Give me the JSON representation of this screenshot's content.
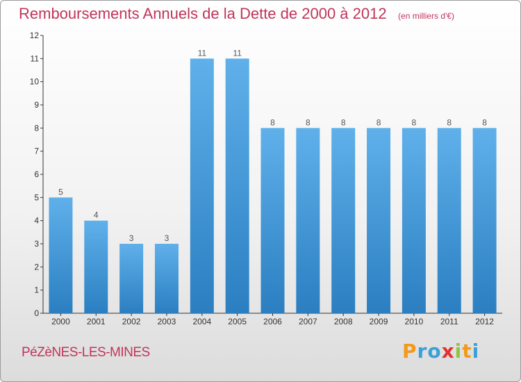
{
  "chart_data": {
    "type": "bar",
    "title": "Remboursements Annuels de la Dette de 2000 à 2012",
    "unit_label": "(en milliers d'€)",
    "categories": [
      "2000",
      "2001",
      "2002",
      "2003",
      "2004",
      "2005",
      "2006",
      "2007",
      "2008",
      "2009",
      "2010",
      "2011",
      "2012"
    ],
    "values": [
      5,
      4,
      3,
      3,
      11,
      11,
      8,
      8,
      8,
      8,
      8,
      8,
      8
    ],
    "data_labels": [
      "5",
      "4",
      "3",
      "3",
      "11",
      "11",
      "8",
      "8",
      "8",
      "8",
      "8",
      "8",
      "8"
    ],
    "ylim": [
      0,
      12
    ],
    "yticks": [
      "0",
      "1",
      "2",
      "3",
      "4",
      "5",
      "6",
      "7",
      "8",
      "9",
      "10",
      "11",
      "12"
    ],
    "grid": false,
    "bar_color": "#4a9edc",
    "bar_color_top": "#5fb0ea",
    "bar_color_bottom": "#2b7fc1"
  },
  "footer": {
    "city": "PéZèNES-LES-MINES",
    "logo_letters": [
      "P",
      "r",
      "o",
      "x",
      "i",
      "t",
      "i"
    ],
    "logo_colors": [
      "#f39a1b",
      "#3aa0d8",
      "#3aa0d8",
      "#e2312f",
      "#8cc63e",
      "#f39a1b",
      "#3aa0d8"
    ]
  },
  "colors": {
    "title": "#c0345a",
    "axis": "#333333"
  }
}
